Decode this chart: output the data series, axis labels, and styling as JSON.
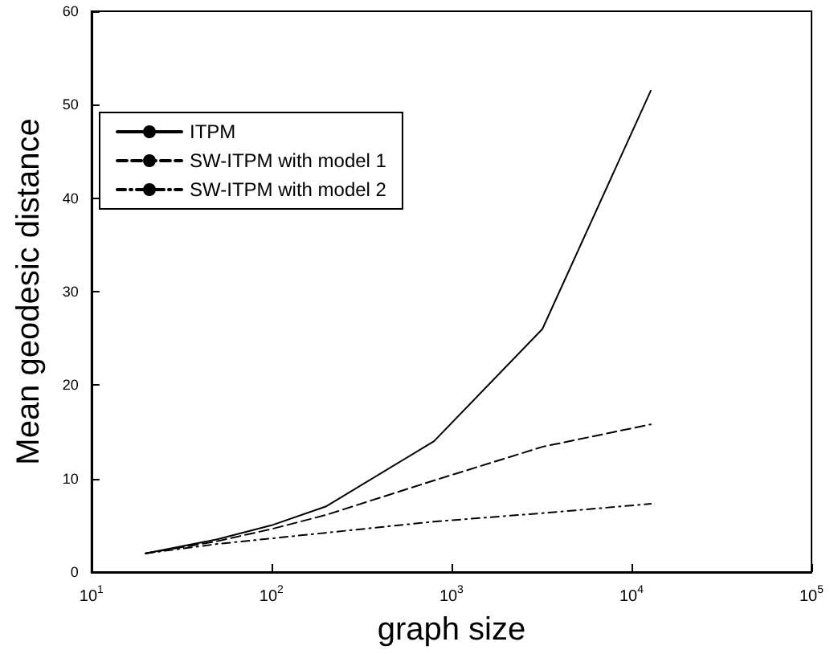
{
  "chart_data": {
    "type": "line",
    "xlabel": "graph size",
    "ylabel": "Mean geodesic distance",
    "x": [
      20,
      50,
      100,
      200,
      800,
      3200,
      12800
    ],
    "series": [
      {
        "name": "ITPM",
        "color": "#000000",
        "line_style": "solid",
        "values": [
          2,
          3.5,
          5,
          7,
          14,
          26,
          51.5
        ]
      },
      {
        "name": "SW-ITPM with model 1",
        "color": "#000000",
        "line_style": "dashed",
        "values": [
          2,
          3.3,
          4.6,
          6.1,
          9.8,
          13.4,
          15.8
        ]
      },
      {
        "name": "SW-ITPM with model 2",
        "color": "#000000",
        "line_style": "dotted",
        "values": [
          2,
          3,
          3.6,
          4.2,
          5.4,
          6.3,
          7.3
        ]
      }
    ],
    "log": "x",
    "xlim": [
      10,
      100000
    ],
    "xticks": [
      {
        "value": 10,
        "label": "10$^{1}$"
      },
      {
        "value": 100,
        "label": "10$^{2}$"
      },
      {
        "value": 1000,
        "label": "10$^{3}$"
      },
      {
        "value": 10000,
        "label": "10$^{4}$"
      },
      {
        "value": 100000,
        "label": "10$^{5}$"
      }
    ],
    "ylim": [
      0,
      60
    ],
    "yticks": [
      0,
      10,
      20,
      30,
      40,
      50,
      60
    ],
    "grid": false,
    "legend": "top left",
    "marker": "none"
  }
}
